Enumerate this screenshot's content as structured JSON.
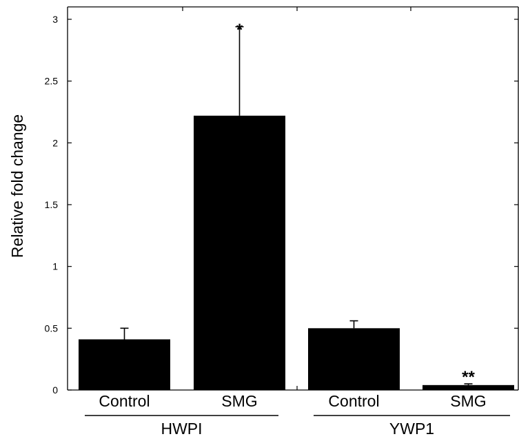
{
  "chart_data": {
    "type": "bar",
    "categories": [
      "Control",
      "SMG",
      "Control",
      "SMG"
    ],
    "groups": [
      {
        "label": "HWPI",
        "members": [
          0,
          1
        ]
      },
      {
        "label": "YWP1",
        "members": [
          2,
          3
        ]
      }
    ],
    "values": [
      0.41,
      2.22,
      0.5,
      0.04
    ],
    "error_upper": [
      0.5,
      2.94,
      0.56,
      0.05
    ],
    "significance": [
      "",
      "*",
      "",
      "**"
    ],
    "ylabel": "Relative fold change",
    "xlabel": "",
    "title": "",
    "ylim": [
      0,
      3
    ],
    "yticks": [
      {
        "value": 0,
        "label": "0"
      },
      {
        "value": 0.5,
        "label": "0.5"
      },
      {
        "value": 1,
        "label": "1"
      },
      {
        "value": 1.5,
        "label": "1.5"
      },
      {
        "value": 2,
        "label": "2"
      },
      {
        "value": 2.5,
        "label": "2.5"
      },
      {
        "value": 3,
        "label": "3"
      }
    ],
    "bar_color": "#000000",
    "grid": false,
    "legend": "none"
  }
}
